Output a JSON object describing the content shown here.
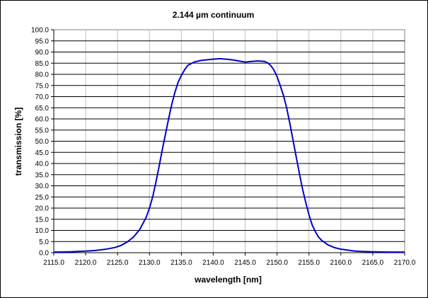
{
  "chart_data": {
    "type": "line",
    "title": "2.144 µm continuum",
    "xlabel": "wavelength [nm]",
    "ylabel": "transmission [%]",
    "xlim": [
      2115.0,
      2170.0
    ],
    "ylim": [
      0.0,
      100.0
    ],
    "x_tick_labels": [
      "2115.0",
      "2120.0",
      "2125.0",
      "2130.0",
      "2135.0",
      "2140.0",
      "2145.0",
      "2150.0",
      "2155.0",
      "2160.0",
      "2165.0",
      "2170.0"
    ],
    "y_tick_labels": [
      "0.0",
      "5.0",
      "10.0",
      "15.0",
      "20.0",
      "25.0",
      "30.0",
      "35.0",
      "40.0",
      "45.0",
      "50.0",
      "55.0",
      "60.0",
      "65.0",
      "70.0",
      "75.0",
      "80.0",
      "85.0",
      "90.0",
      "95.0",
      "100.0"
    ],
    "grid": true,
    "legend": "none",
    "series_color": "#0000cc",
    "series": [
      {
        "x": [
          2115.0,
          2117.5,
          2120.0,
          2121.5,
          2123.0,
          2124.5,
          2125.5,
          2126.5,
          2127.5,
          2128.5,
          2129.5,
          2130.0,
          2130.5,
          2131.0,
          2131.5,
          2132.0,
          2132.5,
          2133.0,
          2133.5,
          2134.0,
          2134.5,
          2135.0,
          2135.5,
          2136.0,
          2137.0,
          2138.0,
          2139.0,
          2140.0,
          2141.0,
          2142.0,
          2143.0,
          2144.0,
          2145.0,
          2146.0,
          2147.0,
          2148.0,
          2148.5,
          2149.0,
          2149.5,
          2150.0,
          2150.5,
          2151.0,
          2151.5,
          2152.0,
          2152.5,
          2153.0,
          2153.5,
          2154.0,
          2154.5,
          2155.0,
          2155.5,
          2156.0,
          2156.5,
          2157.0,
          2158.0,
          2159.0,
          2160.0,
          2161.0,
          2162.0,
          2163.0,
          2165.0,
          2167.5,
          2170.0
        ],
        "y": [
          0.3,
          0.4,
          0.7,
          1.0,
          1.5,
          2.3,
          3.2,
          4.8,
          7.0,
          10.5,
          16.0,
          20.0,
          25.0,
          31.5,
          38.5,
          46.0,
          53.0,
          60.0,
          66.5,
          72.0,
          76.5,
          79.5,
          82.0,
          84.0,
          85.5,
          86.2,
          86.5,
          86.8,
          87.0,
          86.8,
          86.5,
          86.0,
          85.5,
          85.8,
          86.0,
          85.8,
          85.2,
          84.0,
          82.0,
          79.0,
          75.0,
          70.5,
          65.0,
          58.0,
          50.5,
          43.0,
          35.5,
          28.5,
          22.5,
          17.0,
          12.5,
          9.5,
          7.0,
          5.5,
          3.5,
          2.3,
          1.6,
          1.2,
          0.8,
          0.6,
          0.4,
          0.3,
          0.3
        ]
      }
    ]
  }
}
